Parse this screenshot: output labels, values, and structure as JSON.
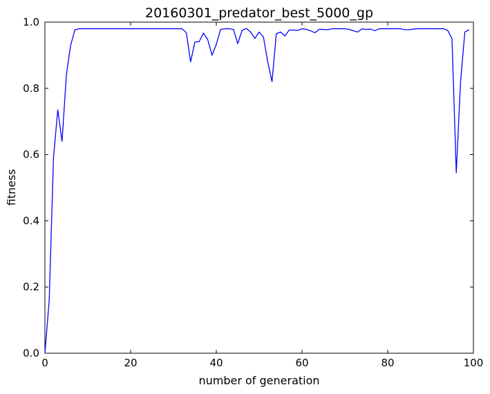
{
  "chart_data": {
    "type": "line",
    "title": "20160301_predator_best_5000_gp",
    "xlabel": "number of generation",
    "ylabel": "fitness",
    "xlim": [
      0,
      100
    ],
    "ylim": [
      0.0,
      1.0
    ],
    "xticks": [
      0,
      20,
      40,
      60,
      80,
      100
    ],
    "xtick_labels": [
      "0",
      "20",
      "40",
      "60",
      "80",
      "100"
    ],
    "yticks": [
      0.0,
      0.2,
      0.4,
      0.6,
      0.8,
      1.0
    ],
    "ytick_labels": [
      "0.0",
      "0.2",
      "0.4",
      "0.6",
      "0.8",
      "1.0"
    ],
    "grid": false,
    "line_color": "#0000ff",
    "series": [
      {
        "x": [
          0,
          1,
          2,
          3,
          4,
          5,
          6,
          7,
          8,
          9,
          10,
          11,
          12,
          13,
          14,
          15,
          16,
          17,
          18,
          19,
          20,
          21,
          22,
          23,
          24,
          25,
          26,
          27,
          28,
          29,
          30,
          31,
          32,
          33,
          34,
          35,
          36,
          37,
          38,
          39,
          40,
          41,
          42,
          43,
          44,
          45,
          46,
          47,
          48,
          49,
          50,
          51,
          52,
          53,
          54,
          55,
          56,
          57,
          58,
          59,
          60,
          61,
          62,
          63,
          64,
          65,
          66,
          67,
          68,
          69,
          70,
          71,
          72,
          73,
          74,
          75,
          76,
          77,
          78,
          79,
          80,
          81,
          82,
          83,
          84,
          85,
          86,
          87,
          88,
          89,
          90,
          91,
          92,
          93,
          94,
          95,
          96,
          97,
          98,
          99
        ],
        "values": [
          0.0,
          0.16,
          0.59,
          0.735,
          0.64,
          0.84,
          0.93,
          0.977,
          0.98,
          0.98,
          0.98,
          0.98,
          0.98,
          0.98,
          0.98,
          0.98,
          0.98,
          0.98,
          0.98,
          0.98,
          0.98,
          0.98,
          0.98,
          0.98,
          0.98,
          0.98,
          0.98,
          0.98,
          0.98,
          0.98,
          0.98,
          0.98,
          0.98,
          0.968,
          0.88,
          0.94,
          0.941,
          0.967,
          0.947,
          0.9,
          0.933,
          0.978,
          0.98,
          0.98,
          0.978,
          0.935,
          0.975,
          0.981,
          0.97,
          0.951,
          0.97,
          0.955,
          0.88,
          0.82,
          0.965,
          0.97,
          0.958,
          0.976,
          0.976,
          0.975,
          0.98,
          0.978,
          0.974,
          0.968,
          0.978,
          0.978,
          0.977,
          0.98,
          0.98,
          0.98,
          0.98,
          0.978,
          0.974,
          0.97,
          0.98,
          0.978,
          0.979,
          0.974,
          0.98,
          0.98,
          0.98,
          0.98,
          0.98,
          0.98,
          0.977,
          0.977,
          0.979,
          0.98,
          0.98,
          0.98,
          0.98,
          0.98,
          0.98,
          0.98,
          0.975,
          0.95,
          0.545,
          0.82,
          0.97,
          0.977
        ]
      }
    ]
  }
}
